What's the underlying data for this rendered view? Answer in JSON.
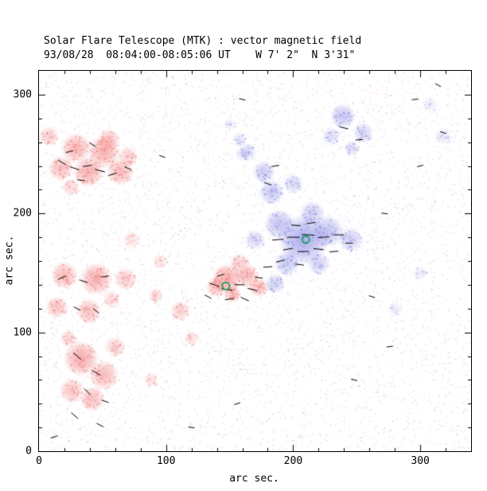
{
  "chart_data": {
    "type": "heatmap",
    "title": "Solar Flare Telescope (MTK) : vector magnetic field",
    "subtitle": "93/08/28  08:04:00-08:05:06 UT    W 7' 2\"  N 3'31\"",
    "xlabel": "arc sec.",
    "ylabel": "arc sec.",
    "xlim": [
      0,
      340
    ],
    "ylim": [
      0,
      320
    ],
    "xticks": [
      0,
      100,
      200,
      300
    ],
    "yticks": [
      0,
      100,
      200,
      300
    ],
    "major_step": 100,
    "minor_step": 20,
    "grid": false,
    "legend": "none",
    "colors": {
      "negative": "#eb4646",
      "positive": "#5050d7",
      "marker": "#00a050",
      "axis": "#000000",
      "background": "#ffffff"
    },
    "noise": {
      "seed": 12345,
      "count": 5200
    },
    "red_blobs": [
      [
        29,
        255,
        12,
        0.75
      ],
      [
        51,
        252,
        13,
        0.8
      ],
      [
        17,
        238,
        10,
        0.65
      ],
      [
        39,
        235,
        12,
        0.8
      ],
      [
        64,
        235,
        11,
        0.7
      ],
      [
        8,
        265,
        8,
        0.5
      ],
      [
        55,
        262,
        9,
        0.55
      ],
      [
        70,
        248,
        8,
        0.5
      ],
      [
        25,
        222,
        7,
        0.4
      ],
      [
        20,
        148,
        11,
        0.7
      ],
      [
        45,
        145,
        13,
        0.8
      ],
      [
        68,
        145,
        9,
        0.55
      ],
      [
        14,
        121,
        9,
        0.6
      ],
      [
        39,
        118,
        10,
        0.65
      ],
      [
        57,
        128,
        7,
        0.4
      ],
      [
        33,
        78,
        14,
        0.85
      ],
      [
        51,
        64,
        12,
        0.7
      ],
      [
        26,
        51,
        10,
        0.6
      ],
      [
        42,
        44,
        10,
        0.65
      ],
      [
        60,
        88,
        8,
        0.5
      ],
      [
        23,
        95,
        7,
        0.45
      ],
      [
        148,
        145,
        12,
        0.85
      ],
      [
        164,
        148,
        9,
        0.7
      ],
      [
        158,
        158,
        8,
        0.5
      ],
      [
        173,
        138,
        8,
        0.6
      ],
      [
        139,
        138,
        8,
        0.6
      ],
      [
        152,
        132,
        7,
        0.6
      ],
      [
        111,
        118,
        8,
        0.5
      ],
      [
        92,
        131,
        6,
        0.4
      ],
      [
        73,
        178,
        7,
        0.3
      ],
      [
        95,
        160,
        6,
        0.3
      ],
      [
        120,
        95,
        6,
        0.35
      ],
      [
        88,
        60,
        6,
        0.3
      ]
    ],
    "blue_blobs": [
      [
        208,
        178,
        20,
        0.9
      ],
      [
        189,
        191,
        12,
        0.65
      ],
      [
        227,
        185,
        13,
        0.65
      ],
      [
        183,
        218,
        10,
        0.6
      ],
      [
        177,
        235,
        9,
        0.55
      ],
      [
        195,
        158,
        10,
        0.6
      ],
      [
        186,
        141,
        8,
        0.5
      ],
      [
        245,
        178,
        10,
        0.55
      ],
      [
        220,
        158,
        9,
        0.5
      ],
      [
        170,
        178,
        8,
        0.45
      ],
      [
        215,
        200,
        10,
        0.55
      ],
      [
        200,
        225,
        8,
        0.45
      ],
      [
        164,
        252,
        7,
        0.4
      ],
      [
        158,
        262,
        6,
        0.3
      ],
      [
        239,
        282,
        10,
        0.6
      ],
      [
        255,
        268,
        8,
        0.5
      ],
      [
        230,
        265,
        7,
        0.4
      ],
      [
        246,
        255,
        6,
        0.4
      ],
      [
        318,
        265,
        7,
        0.25
      ],
      [
        308,
        292,
        6,
        0.2
      ],
      [
        300,
        150,
        6,
        0.2
      ],
      [
        280,
        120,
        6,
        0.2
      ],
      [
        160,
        250,
        6,
        0.25
      ],
      [
        150,
        275,
        5,
        0.2
      ]
    ],
    "vectors": [
      [
        18,
        243,
        -30,
        7
      ],
      [
        28,
        238,
        -18,
        8
      ],
      [
        38,
        240,
        8,
        7
      ],
      [
        48,
        236,
        -14,
        8
      ],
      [
        58,
        233,
        18,
        7
      ],
      [
        70,
        238,
        -24,
        6
      ],
      [
        33,
        228,
        -8,
        6
      ],
      [
        24,
        252,
        14,
        6
      ],
      [
        42,
        258,
        -32,
        6
      ],
      [
        18,
        146,
        24,
        7
      ],
      [
        35,
        143,
        -18,
        7
      ],
      [
        52,
        147,
        8,
        6
      ],
      [
        30,
        120,
        -28,
        6
      ],
      [
        45,
        118,
        -40,
        6
      ],
      [
        30,
        80,
        -40,
        8
      ],
      [
        45,
        66,
        -30,
        8
      ],
      [
        38,
        50,
        -45,
        7
      ],
      [
        52,
        42,
        -20,
        6
      ],
      [
        28,
        30,
        -40,
        7
      ],
      [
        48,
        22,
        -28,
        6
      ],
      [
        12,
        12,
        18,
        6
      ],
      [
        138,
        140,
        -18,
        8
      ],
      [
        148,
        136,
        -8,
        9
      ],
      [
        158,
        140,
        0,
        8
      ],
      [
        168,
        136,
        -14,
        8
      ],
      [
        150,
        128,
        8,
        7
      ],
      [
        162,
        128,
        -24,
        7
      ],
      [
        143,
        148,
        18,
        6
      ],
      [
        173,
        146,
        -8,
        6
      ],
      [
        133,
        130,
        -28,
        6
      ],
      [
        180,
        155,
        4,
        7
      ],
      [
        188,
        178,
        4,
        9
      ],
      [
        200,
        180,
        0,
        10
      ],
      [
        212,
        182,
        -4,
        10
      ],
      [
        224,
        180,
        4,
        9
      ],
      [
        236,
        182,
        0,
        8
      ],
      [
        196,
        170,
        10,
        8
      ],
      [
        208,
        168,
        0,
        9
      ],
      [
        220,
        170,
        -6,
        8
      ],
      [
        232,
        168,
        4,
        7
      ],
      [
        202,
        190,
        -4,
        7
      ],
      [
        214,
        192,
        8,
        7
      ],
      [
        190,
        160,
        14,
        7
      ],
      [
        205,
        157,
        -8,
        7
      ],
      [
        244,
        175,
        0,
        6
      ],
      [
        180,
        225,
        -18,
        6
      ],
      [
        186,
        240,
        8,
        6
      ],
      [
        240,
        272,
        -14,
        7
      ],
      [
        252,
        262,
        4,
        6
      ],
      [
        272,
        200,
        -8,
        5
      ],
      [
        300,
        240,
        14,
        5
      ],
      [
        318,
        268,
        -18,
        5
      ],
      [
        296,
        296,
        8,
        5
      ],
      [
        314,
        308,
        -28,
        5
      ],
      [
        262,
        130,
        -18,
        5
      ],
      [
        276,
        88,
        8,
        5
      ],
      [
        248,
        60,
        -14,
        5
      ],
      [
        156,
        40,
        18,
        5
      ],
      [
        120,
        20,
        -8,
        5
      ],
      [
        160,
        296,
        -14,
        5
      ],
      [
        97,
        248,
        -20,
        5
      ]
    ],
    "markers": [
      [
        210,
        178
      ],
      [
        147,
        139
      ]
    ]
  }
}
